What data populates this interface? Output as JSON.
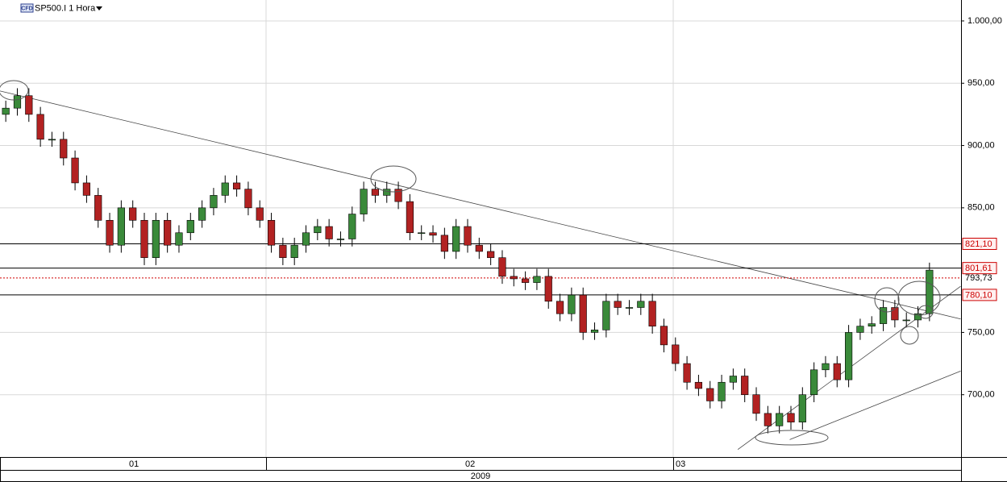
{
  "chart_data": {
    "type": "candlestick",
    "badge": "CFD",
    "title": "SP500.I 1 Hora",
    "months": [
      "01",
      "02",
      "03"
    ],
    "year": "2009",
    "ylim": [
      650,
      1016.8
    ],
    "yticks": [
      {
        "value": 1000,
        "label": "1.000,00"
      },
      {
        "value": 950,
        "label": "950,00"
      },
      {
        "value": 900,
        "label": "900,00"
      },
      {
        "value": 850,
        "label": "850,00"
      },
      {
        "value": 750,
        "label": "750,00"
      },
      {
        "value": 700,
        "label": "700,00"
      }
    ],
    "grid": true,
    "up_color": "#3a8a3a",
    "down_color": "#b22222",
    "open": [
      925,
      930,
      940,
      925,
      905,
      905,
      890,
      870,
      860,
      840,
      820,
      850,
      840,
      810,
      840,
      820,
      830,
      840,
      850,
      860,
      870,
      865,
      850,
      840,
      820,
      810,
      820,
      830,
      835,
      825,
      825,
      845,
      865,
      860,
      865,
      855,
      830,
      830,
      828,
      815,
      835,
      820,
      815,
      810,
      795,
      793,
      790,
      795,
      775,
      765,
      780,
      750,
      752,
      775,
      770,
      770,
      775,
      755,
      740,
      725,
      710,
      705,
      695,
      710,
      715,
      700,
      685,
      675,
      685,
      678,
      700,
      720,
      725,
      712,
      750,
      755,
      757,
      770,
      760,
      760,
      765
    ],
    "high": [
      936,
      946,
      946,
      931,
      911,
      911,
      896,
      876,
      866,
      846,
      856,
      856,
      846,
      846,
      846,
      836,
      846,
      856,
      866,
      876,
      876,
      871,
      856,
      846,
      826,
      826,
      836,
      841,
      841,
      831,
      851,
      871,
      871,
      871,
      871,
      861,
      836,
      836,
      834,
      841,
      841,
      826,
      821,
      816,
      801,
      799,
      801,
      801,
      781,
      786,
      786,
      758,
      781,
      781,
      776,
      781,
      781,
      761,
      746,
      731,
      716,
      711,
      716,
      721,
      721,
      706,
      691,
      691,
      691,
      706,
      726,
      731,
      731,
      756,
      761,
      763,
      776,
      776,
      766,
      771,
      806
    ],
    "low": [
      919,
      924,
      919,
      899,
      899,
      884,
      864,
      854,
      834,
      814,
      814,
      834,
      804,
      804,
      814,
      814,
      824,
      834,
      844,
      854,
      859,
      844,
      834,
      814,
      804,
      804,
      814,
      824,
      819,
      819,
      819,
      839,
      854,
      854,
      849,
      824,
      824,
      822,
      809,
      809,
      814,
      809,
      804,
      789,
      787,
      784,
      784,
      769,
      759,
      759,
      744,
      744,
      746,
      764,
      764,
      764,
      749,
      734,
      719,
      704,
      699,
      689,
      689,
      704,
      694,
      679,
      669,
      669,
      672,
      672,
      694,
      714,
      706,
      706,
      744,
      749,
      751,
      754,
      754,
      754,
      759
    ],
    "close": [
      930,
      940,
      925,
      905,
      905,
      890,
      870,
      860,
      840,
      820,
      850,
      840,
      810,
      840,
      820,
      830,
      840,
      850,
      860,
      870,
      865,
      850,
      840,
      820,
      810,
      820,
      830,
      835,
      825,
      825,
      845,
      865,
      860,
      865,
      855,
      830,
      830,
      828,
      815,
      835,
      820,
      815,
      810,
      795,
      793,
      790,
      795,
      775,
      765,
      780,
      750,
      752,
      775,
      770,
      770,
      775,
      755,
      740,
      725,
      710,
      705,
      695,
      710,
      715,
      700,
      685,
      675,
      685,
      678,
      700,
      720,
      725,
      712,
      750,
      755,
      757,
      770,
      760,
      760,
      765,
      800
    ],
    "levels": [
      {
        "value": 821.1,
        "label": "821,10",
        "color": "#000000",
        "style": "solid",
        "label_color": "#cc0000",
        "boxed": true
      },
      {
        "value": 801.61,
        "label": "801,61",
        "color": "#000000",
        "style": "solid",
        "label_color": "#cc0000",
        "boxed": true
      },
      {
        "value": 793.73,
        "label": "793,73",
        "color": "#d00000",
        "style": "dotted",
        "label_color": "#000000",
        "boxed": false
      },
      {
        "value": 780.1,
        "label": "780,10",
        "color": "#000000",
        "style": "solid",
        "label_color": "#cc0000",
        "boxed": true
      }
    ],
    "trendlines": [
      {
        "from": [
          -0.5,
          943.8
        ],
        "to": [
          82.7,
          760.8
        ]
      },
      {
        "from": [
          63.4,
          656
        ],
        "to": [
          82.7,
          787
        ]
      },
      {
        "from": [
          67.9,
          664
        ],
        "to": [
          82.7,
          719
        ]
      }
    ]
  }
}
